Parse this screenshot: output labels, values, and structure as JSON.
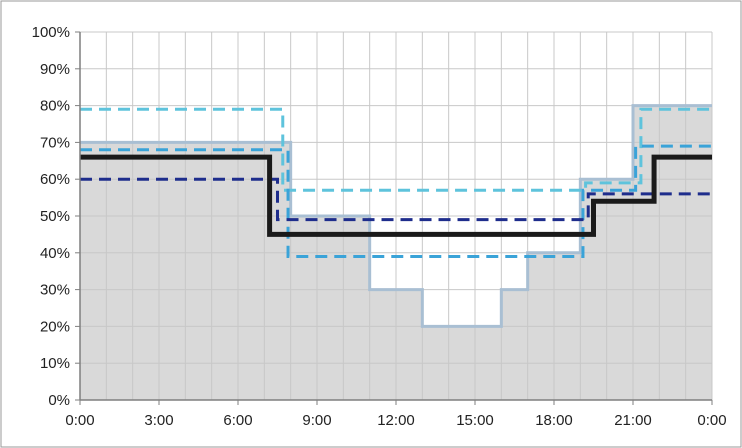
{
  "chart_data": {
    "type": "line",
    "title": "",
    "xlabel": "",
    "ylabel": "",
    "x_ticks": [
      "0:00",
      "3:00",
      "6:00",
      "9:00",
      "12:00",
      "15:00",
      "18:00",
      "21:00",
      "0:00"
    ],
    "y_ticks": [
      "0%",
      "10%",
      "20%",
      "30%",
      "40%",
      "50%",
      "60%",
      "70%",
      "80%",
      "90%",
      "100%"
    ],
    "xlim": [
      0,
      24
    ],
    "ylim": [
      0,
      100
    ],
    "grid": true,
    "legend": "none",
    "area": {
      "fill": "#d9d9d9",
      "stroke": "#a9bfd3",
      "points": [
        [
          0,
          70
        ],
        [
          8,
          70
        ],
        [
          8,
          50
        ],
        [
          11,
          50
        ],
        [
          11,
          30
        ],
        [
          13,
          30
        ],
        [
          13,
          20
        ],
        [
          16,
          20
        ],
        [
          16,
          30
        ],
        [
          17,
          30
        ],
        [
          17,
          40
        ],
        [
          19,
          40
        ],
        [
          19,
          60
        ],
        [
          21,
          60
        ],
        [
          21,
          80
        ],
        [
          24,
          80
        ]
      ]
    },
    "series": [
      {
        "style": "dashed",
        "color": "#5ec3dc",
        "points": [
          [
            0,
            79
          ],
          [
            7.7,
            79
          ],
          [
            7.7,
            57
          ],
          [
            19.2,
            57
          ],
          [
            19.2,
            59
          ],
          [
            21.3,
            59
          ],
          [
            21.3,
            79
          ],
          [
            24,
            79
          ]
        ]
      },
      {
        "style": "dashed",
        "color": "#3aa3d8",
        "points": [
          [
            0,
            68
          ],
          [
            7.9,
            68
          ],
          [
            7.9,
            39
          ],
          [
            19.1,
            39
          ],
          [
            19.1,
            57
          ],
          [
            21.1,
            57
          ],
          [
            21.1,
            69
          ],
          [
            24,
            69
          ]
        ]
      },
      {
        "style": "dashed",
        "color": "#1e2d8c",
        "points": [
          [
            0,
            60
          ],
          [
            7.5,
            60
          ],
          [
            7.5,
            49
          ],
          [
            19.3,
            49
          ],
          [
            19.3,
            56
          ],
          [
            21.6,
            56
          ],
          [
            21.6,
            56
          ],
          [
            24,
            56
          ]
        ]
      },
      {
        "style": "solid",
        "color": "#1a1a1a",
        "points": [
          [
            0,
            66
          ],
          [
            7.2,
            66
          ],
          [
            7.2,
            45
          ],
          [
            19.5,
            45
          ],
          [
            19.5,
            54
          ],
          [
            21.8,
            54
          ],
          [
            21.8,
            66
          ],
          [
            24,
            66
          ]
        ]
      }
    ]
  }
}
